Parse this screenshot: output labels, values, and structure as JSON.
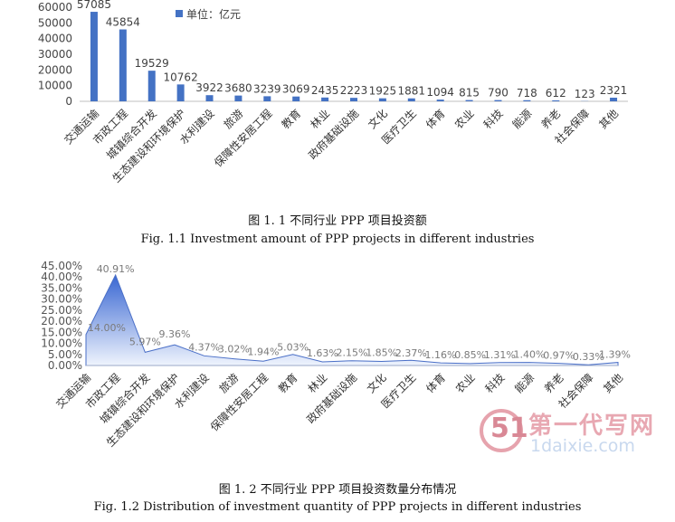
{
  "chart_data": [
    {
      "type": "bar",
      "categories": [
        "交通运输",
        "市政工程",
        "城镇综合开发",
        "生态建设和环境保护",
        "水利建设",
        "旅游",
        "保障性安居工程",
        "教育",
        "林业",
        "政府基础设施",
        "文化",
        "医疗卫生",
        "体育",
        "农业",
        "科技",
        "能源",
        "养老",
        "社会保障",
        "其他"
      ],
      "series": [
        {
          "name": "单位：亿元",
          "values": [
            57085,
            45854,
            19529,
            10762,
            3922,
            3680,
            3239,
            3069,
            2435,
            2223,
            1925,
            1881,
            1094,
            815,
            790,
            718,
            612,
            123,
            2321
          ]
        }
      ],
      "data_labels": [
        "57085",
        "45854",
        "19529",
        "10762",
        "3922",
        "3680",
        "3239",
        "3069",
        "2435",
        "2223",
        "1925",
        "1881",
        "1094",
        "815",
        "790",
        "718",
        "612",
        "123",
        "2321"
      ],
      "yticks": [
        "0",
        "10000",
        "20000",
        "30000",
        "40000",
        "50000",
        "60000"
      ],
      "ylim": [
        0,
        60000
      ],
      "legend": "top-left",
      "color": "#4472c4",
      "caption_zh": "图 1. 1    不同行业 PPP 项目投资额",
      "caption_en": "Fig. 1.1    Investment amount of PPP projects in different industries"
    },
    {
      "type": "area",
      "categories": [
        "交通运输",
        "市政工程",
        "城镇综合开发",
        "生态建设和环境保护",
        "水利建设",
        "旅游",
        "保障性安居工程",
        "教育",
        "林业",
        "政府基础设施",
        "文化",
        "医疗卫生",
        "体育",
        "农业",
        "科技",
        "能源",
        "养老",
        "社会保障",
        "其他"
      ],
      "values": [
        14.0,
        40.91,
        5.97,
        9.36,
        4.37,
        3.02,
        1.94,
        5.03,
        1.63,
        2.15,
        1.85,
        2.37,
        1.16,
        0.85,
        1.31,
        1.4,
        0.97,
        0.33,
        1.39
      ],
      "data_labels": [
        "14.00%",
        "40.91%",
        "5.97%",
        "9.36%",
        "4.37%",
        "3.02%",
        "1.94%",
        "5.03%",
        "1.63%",
        "2.15%",
        "1.85%",
        "2.37%",
        "1.16%",
        "0.85%",
        "1.31%",
        "1.40%",
        "0.97%",
        "0.33%",
        "1.39%"
      ],
      "yticks": [
        "0.00%",
        "5.00%",
        "10.00%",
        "15.00%",
        "20.00%",
        "25.00%",
        "30.00%",
        "35.00%",
        "40.00%",
        "45.00%"
      ],
      "ylim": [
        0,
        45
      ],
      "color": "#4472c4",
      "caption_zh": "图 1. 2    不同行业 PPP 项目投资数量分布情况",
      "caption_en": "Fig. 1.2    Distribution of investment quantity of PPP projects in different industries"
    }
  ],
  "watermark": {
    "mark": "51",
    "name": "第一代写网",
    "url": "1daixie.com"
  }
}
